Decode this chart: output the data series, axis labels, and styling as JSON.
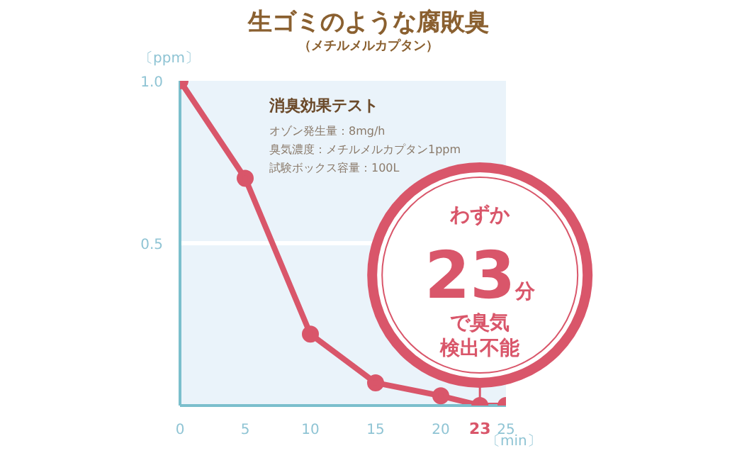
{
  "chart_data": {
    "type": "line",
    "title": "生ゴミのような腐敗臭",
    "subtitle": "（メチルメルカプタン）",
    "xlabel": "〔min〕",
    "ylabel": "〔ppm〕",
    "x": [
      0,
      5,
      10,
      15,
      20,
      23,
      25
    ],
    "series": [
      {
        "color": "#d9566a",
        "values": [
          1.0,
          0.7,
          0.22,
          0.07,
          0.03,
          0,
          0
        ]
      }
    ],
    "xlim": [
      0,
      25
    ],
    "xticks": [
      0,
      5,
      10,
      15,
      20,
      23,
      25
    ],
    "ylim": [
      0,
      1
    ],
    "yticks": [
      {
        "value": 0,
        "label": null
      },
      0.5,
      {
        "value": 1,
        "label": "1.0"
      }
    ],
    "grid": "y",
    "marker": "circle",
    "line_style": "solid",
    "annotations": [
      "消臭効果テスト",
      "オゾン発生量：8mg/h",
      "臭気濃度：メチルメルカプタン1ppm",
      "試験ボックス容量：100L",
      {
        "text": "わずか23分で臭気検出不能",
        "x": 23,
        "y": 0
      }
    ]
  }
}
